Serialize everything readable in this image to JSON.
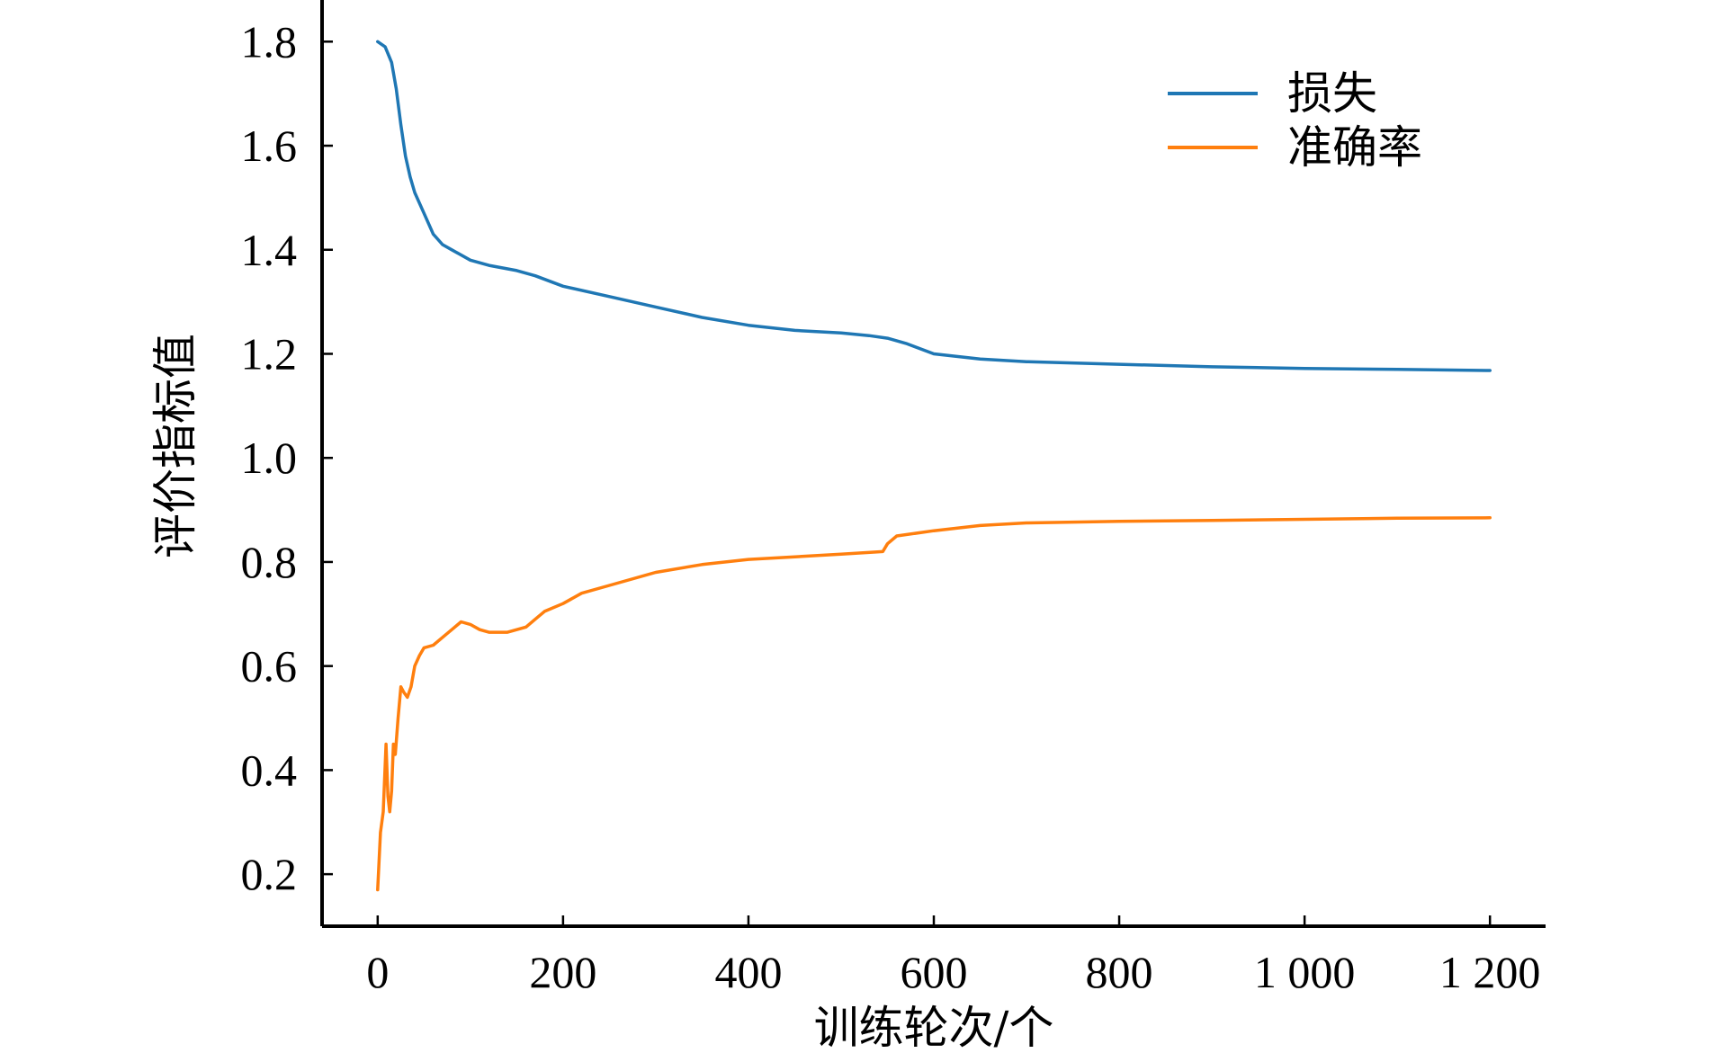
{
  "chart_data": {
    "type": "line",
    "title": "",
    "xlabel": "训练轮次/个",
    "ylabel": "评价指标值",
    "xlim": [
      -60,
      1260
    ],
    "ylim": [
      0.1,
      1.88
    ],
    "xticks": [
      0,
      200,
      400,
      600,
      800,
      1000,
      1200
    ],
    "xtick_labels": [
      "0",
      "200",
      "400",
      "600",
      "800",
      "1 000",
      "1 200"
    ],
    "yticks": [
      0.2,
      0.4,
      0.6,
      0.8,
      1.0,
      1.2,
      1.4,
      1.6,
      1.8
    ],
    "ytick_labels": [
      "0.2",
      "0.4",
      "0.6",
      "0.8",
      "1.0",
      "1.2",
      "1.4",
      "1.6",
      "1.8"
    ],
    "grid": false,
    "legend_position": "top-right",
    "series": [
      {
        "name": "损失",
        "color": "#1f77b4",
        "x": [
          0,
          8,
          15,
          20,
          25,
          30,
          35,
          40,
          50,
          60,
          70,
          80,
          100,
          120,
          150,
          170,
          200,
          250,
          300,
          350,
          400,
          450,
          500,
          530,
          550,
          570,
          600,
          650,
          700,
          800,
          900,
          1000,
          1100,
          1200
        ],
        "y": [
          1.8,
          1.79,
          1.76,
          1.71,
          1.64,
          1.58,
          1.54,
          1.51,
          1.47,
          1.43,
          1.41,
          1.4,
          1.38,
          1.37,
          1.36,
          1.35,
          1.33,
          1.31,
          1.29,
          1.27,
          1.255,
          1.245,
          1.24,
          1.235,
          1.23,
          1.22,
          1.2,
          1.19,
          1.185,
          1.18,
          1.175,
          1.172,
          1.17,
          1.168
        ]
      },
      {
        "name": "准确率",
        "color": "#ff7f0e",
        "x": [
          0,
          3,
          6,
          9,
          11,
          13,
          15,
          17,
          19,
          22,
          25,
          28,
          32,
          36,
          40,
          45,
          50,
          60,
          70,
          80,
          90,
          100,
          110,
          120,
          140,
          160,
          170,
          180,
          200,
          220,
          250,
          300,
          350,
          400,
          450,
          500,
          545,
          550,
          560,
          600,
          650,
          700,
          800,
          900,
          1000,
          1100,
          1200
        ],
        "y": [
          0.17,
          0.28,
          0.32,
          0.45,
          0.35,
          0.32,
          0.36,
          0.45,
          0.43,
          0.5,
          0.56,
          0.55,
          0.54,
          0.56,
          0.6,
          0.62,
          0.635,
          0.64,
          0.655,
          0.67,
          0.685,
          0.68,
          0.67,
          0.665,
          0.665,
          0.675,
          0.69,
          0.705,
          0.72,
          0.74,
          0.755,
          0.78,
          0.795,
          0.805,
          0.81,
          0.815,
          0.82,
          0.835,
          0.85,
          0.86,
          0.87,
          0.875,
          0.878,
          0.88,
          0.882,
          0.884,
          0.885
        ]
      }
    ]
  }
}
